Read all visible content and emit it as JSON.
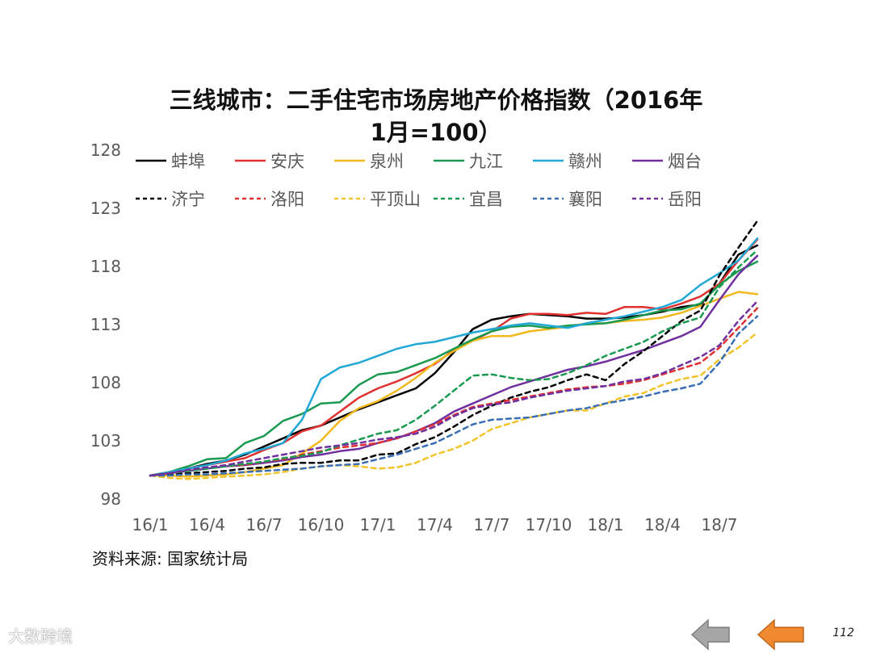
{
  "page": {
    "source": "资料来源:  国家统计局",
    "page_number": "112",
    "watermark": "大数跨境"
  },
  "nav": {
    "back_color": "#a6a6a6",
    "next_color": "#f08a30"
  },
  "chart_data": {
    "type": "line",
    "title_line1": "三线城市：二手住宅市场房地产价格指数（2016年",
    "title_line2": "1月=100）",
    "y_ticks": [
      "128",
      "123",
      "118",
      "113",
      "108",
      "103",
      "98"
    ],
    "x_ticks": [
      "16/1",
      "16/4",
      "16/7",
      "16/10",
      "17/1",
      "17/4",
      "17/7",
      "17/10",
      "18/1",
      "18/4",
      "18/7"
    ],
    "ylim": [
      98,
      128
    ],
    "x": [
      0,
      1,
      2,
      3,
      4,
      5,
      6,
      7,
      8,
      9,
      10,
      11,
      12,
      13,
      14,
      15,
      16,
      17,
      18,
      19,
      20,
      21,
      22,
      23,
      24,
      25,
      26,
      27,
      28,
      29,
      30,
      31,
      32
    ],
    "legend": "top, two rows",
    "series": [
      {
        "name": "蚌埠",
        "color": "#000000",
        "dash": "solid",
        "values": [
          100,
          100.3,
          100.6,
          101,
          101.3,
          101.8,
          102.5,
          103.2,
          103.9,
          104.3,
          105,
          105.7,
          106.3,
          106.9,
          107.5,
          108.8,
          110.6,
          112.6,
          113.4,
          113.7,
          113.9,
          113.8,
          113.7,
          113.5,
          113.5,
          113.6,
          113.8,
          114.1,
          114.5,
          114.7,
          116.5,
          119,
          119.8
        ]
      },
      {
        "name": "安庆",
        "color": "#e03030",
        "dash": "solid",
        "values": [
          100,
          100.3,
          100.6,
          100.9,
          101.2,
          101.5,
          102.2,
          102.8,
          103.8,
          104.3,
          105.5,
          106.7,
          107.5,
          108.1,
          108.8,
          109.6,
          110.8,
          111.6,
          112.4,
          113.5,
          113.9,
          113.9,
          113.8,
          114,
          113.9,
          114.5,
          114.5,
          114.3,
          114.8,
          115.4,
          116.5,
          118.5,
          120.3
        ]
      },
      {
        "name": "泉州",
        "color": "#f2b81e",
        "dash": "solid",
        "values": [
          100,
          100,
          99.9,
          100,
          100.1,
          100.3,
          100.6,
          100.9,
          101.9,
          103,
          104.7,
          105.8,
          106.4,
          107.3,
          108.4,
          109.7,
          110.7,
          111.6,
          112,
          112,
          112.4,
          112.6,
          112.8,
          113.1,
          113.1,
          113.3,
          113.4,
          113.6,
          114,
          114.6,
          115.2,
          115.8,
          115.6
        ]
      },
      {
        "name": "九江",
        "color": "#1a9a50",
        "dash": "solid",
        "values": [
          100,
          100.3,
          100.8,
          101.4,
          101.5,
          102.8,
          103.4,
          104.7,
          105.3,
          106.2,
          106.3,
          107.8,
          108.7,
          108.9,
          109.5,
          110.1,
          110.9,
          111.7,
          112.4,
          112.8,
          112.9,
          112.7,
          112.9,
          113,
          113.1,
          113.4,
          113.8,
          114.2,
          114.3,
          114.8,
          116.4,
          117.6,
          118.4
        ]
      },
      {
        "name": "赣州",
        "color": "#22a8d6",
        "dash": "solid",
        "values": [
          100,
          100.3,
          100.6,
          100.9,
          101.3,
          101.9,
          102.3,
          102.8,
          104.8,
          108.3,
          109.3,
          109.7,
          110.3,
          110.9,
          111.3,
          111.5,
          111.9,
          112.3,
          112.6,
          112.9,
          113.1,
          112.9,
          112.7,
          113.1,
          113.4,
          113.7,
          114.1,
          114.5,
          115.1,
          116.4,
          117.4,
          118.5,
          120.4
        ]
      },
      {
        "name": "烟台",
        "color": "#7030a0",
        "dash": "solid",
        "values": [
          100,
          100.2,
          100.4,
          100.6,
          100.8,
          100.9,
          101.1,
          101.3,
          101.6,
          101.8,
          102.1,
          102.3,
          102.8,
          103.2,
          103.8,
          104.5,
          105.5,
          106.2,
          106.9,
          107.6,
          108.1,
          108.6,
          109.1,
          109.4,
          109.8,
          110.3,
          110.8,
          111.4,
          112,
          112.8,
          115.1,
          117.3,
          118.9
        ]
      },
      {
        "name": "济宁",
        "color": "#000000",
        "dash": "6,5",
        "values": [
          100,
          100.1,
          100.2,
          100.3,
          100.4,
          100.6,
          100.7,
          101,
          101.1,
          101.1,
          101.3,
          101.3,
          101.8,
          101.9,
          102.7,
          103.3,
          104.2,
          105.2,
          106,
          106.7,
          107.2,
          107.6,
          108.2,
          108.7,
          108.2,
          109.6,
          110.7,
          112,
          113.3,
          114.2,
          117.2,
          119.6,
          121.9
        ]
      },
      {
        "name": "洛阳",
        "color": "#e03030",
        "dash": "6,5",
        "values": [
          100,
          100.2,
          100.4,
          100.7,
          100.8,
          100.9,
          101.2,
          101.4,
          101.8,
          102.1,
          102.4,
          102.6,
          102.8,
          103.2,
          103.8,
          104.4,
          105.2,
          105.9,
          106.2,
          106.5,
          106.8,
          107.1,
          107.4,
          107.6,
          107.7,
          107.9,
          108.2,
          108.7,
          109.2,
          109.7,
          111,
          112.7,
          114.4
        ]
      },
      {
        "name": "平顶山",
        "color": "#f2c42c",
        "dash": "6,5",
        "values": [
          100,
          99.8,
          99.7,
          99.8,
          99.9,
          100,
          100.1,
          100.3,
          100.6,
          100.8,
          100.9,
          100.8,
          100.6,
          100.7,
          101.1,
          101.8,
          102.3,
          103,
          104,
          104.5,
          105,
          105.3,
          105.6,
          105.6,
          106.2,
          106.8,
          107.1,
          107.8,
          108.3,
          108.6,
          110,
          111,
          112.3
        ]
      },
      {
        "name": "宜昌",
        "color": "#1a9a50",
        "dash": "6,5",
        "values": [
          100,
          100.2,
          100.4,
          100.6,
          100.8,
          101,
          101.2,
          101.5,
          101.7,
          102,
          102.6,
          103.1,
          103.6,
          103.9,
          104.8,
          106,
          107.3,
          108.6,
          108.7,
          108.4,
          108.2,
          108.3,
          108.8,
          109.5,
          110.3,
          110.9,
          111.5,
          112.4,
          113.1,
          113.6,
          116.2,
          117.9,
          119.4
        ]
      },
      {
        "name": "襄阳",
        "color": "#3a6fb5",
        "dash": "6,5",
        "values": [
          100,
          100,
          100.1,
          100.1,
          100.2,
          100.3,
          100.4,
          100.5,
          100.6,
          100.8,
          100.9,
          101,
          101.4,
          101.8,
          102.3,
          102.8,
          103.6,
          104.4,
          104.8,
          104.9,
          105,
          105.3,
          105.6,
          105.8,
          106.2,
          106.5,
          106.8,
          107.2,
          107.5,
          107.9,
          109.7,
          112.2,
          113.7
        ]
      },
      {
        "name": "岳阳",
        "color": "#7030a0",
        "dash": "6,5",
        "values": [
          100,
          100.2,
          100.5,
          100.7,
          100.9,
          101.2,
          101.5,
          101.8,
          102.1,
          102.4,
          102.6,
          102.8,
          103.1,
          103.3,
          103.6,
          104.2,
          105.1,
          105.8,
          106.1,
          106.3,
          106.7,
          107,
          107.3,
          107.5,
          107.7,
          108.1,
          108.3,
          108.8,
          109.5,
          110.2,
          111.2,
          113.3,
          115
        ]
      }
    ]
  }
}
